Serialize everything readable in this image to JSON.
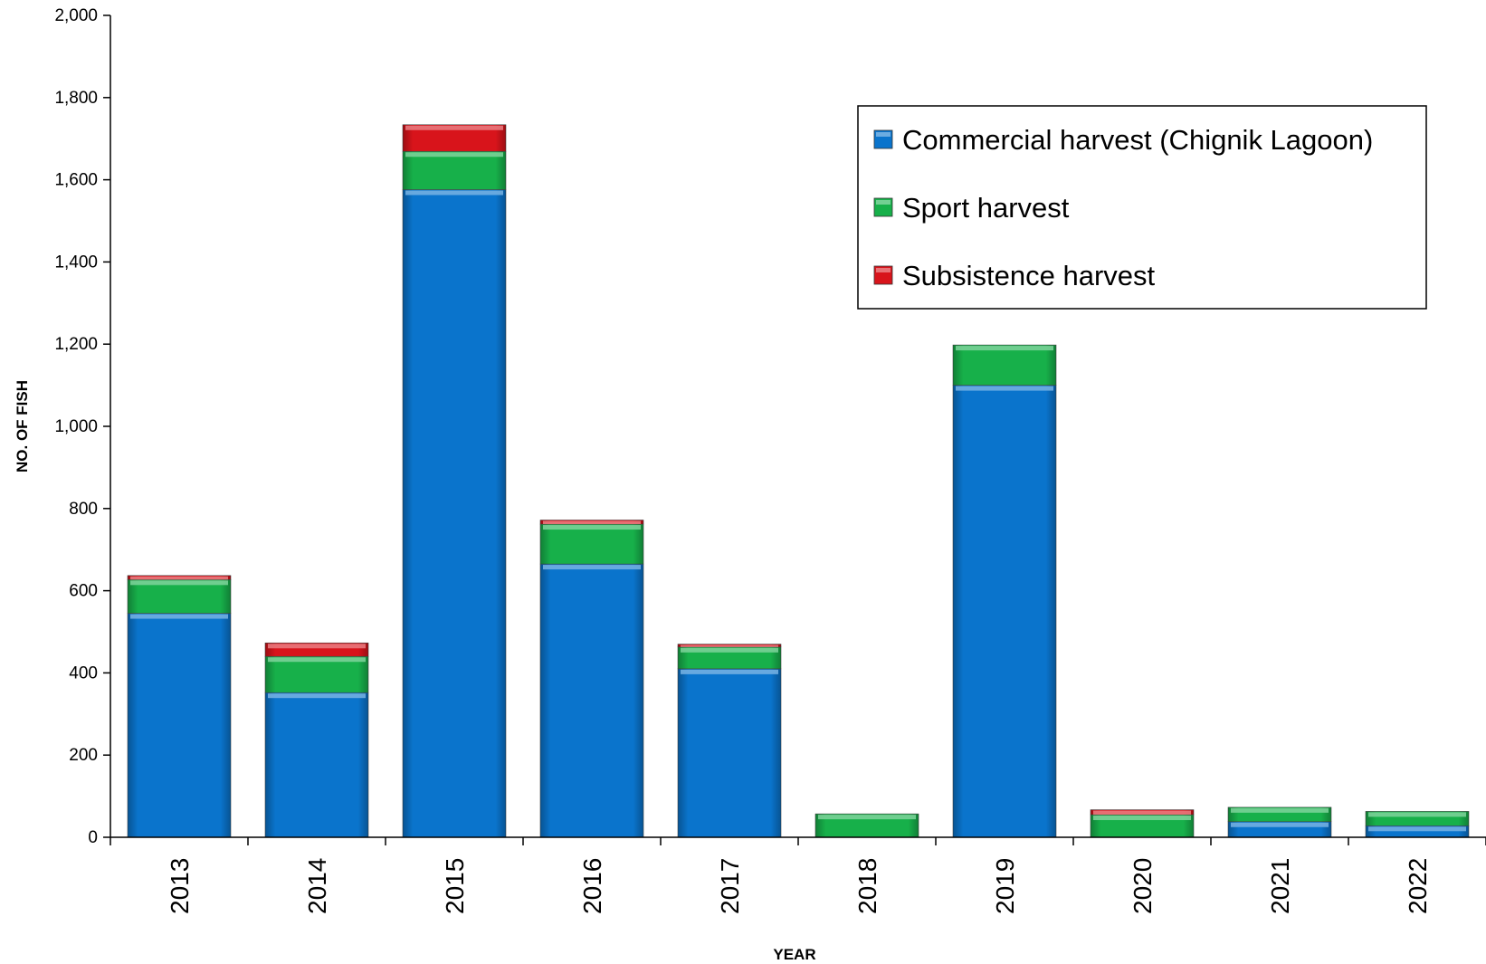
{
  "chart_data": {
    "type": "bar",
    "stacked": true,
    "categories": [
      "2013",
      "2014",
      "2015",
      "2016",
      "2017",
      "2018",
      "2019",
      "2020",
      "2021",
      "2022"
    ],
    "series": [
      {
        "name": "Commercial harvest (Chignik Lagoon)",
        "color": "#0a74cc",
        "values": [
          545,
          352,
          1576,
          665,
          410,
          0,
          1100,
          0,
          38,
          28
        ]
      },
      {
        "name": "Sport harvest",
        "color": "#17b04a",
        "values": [
          82,
          88,
          93,
          97,
          53,
          57,
          98,
          55,
          35,
          35
        ]
      },
      {
        "name": "Subsistence harvest",
        "color": "#d8141b",
        "values": [
          10,
          33,
          65,
          10,
          7,
          0,
          0,
          12,
          0,
          0
        ]
      }
    ],
    "xlabel": "YEAR",
    "ylabel": "NO. OF FISH",
    "ylim": [
      0,
      2000
    ],
    "yticks": [
      0,
      200,
      400,
      600,
      800,
      1000,
      1200,
      1400,
      1600,
      1800,
      2000
    ],
    "ytick_labels": [
      "0",
      "200",
      "400",
      "600",
      "800",
      "1,000",
      "1,200",
      "1,400",
      "1,600",
      "1,800",
      "2,000"
    ],
    "grid": false,
    "legend_position": "top-right"
  }
}
